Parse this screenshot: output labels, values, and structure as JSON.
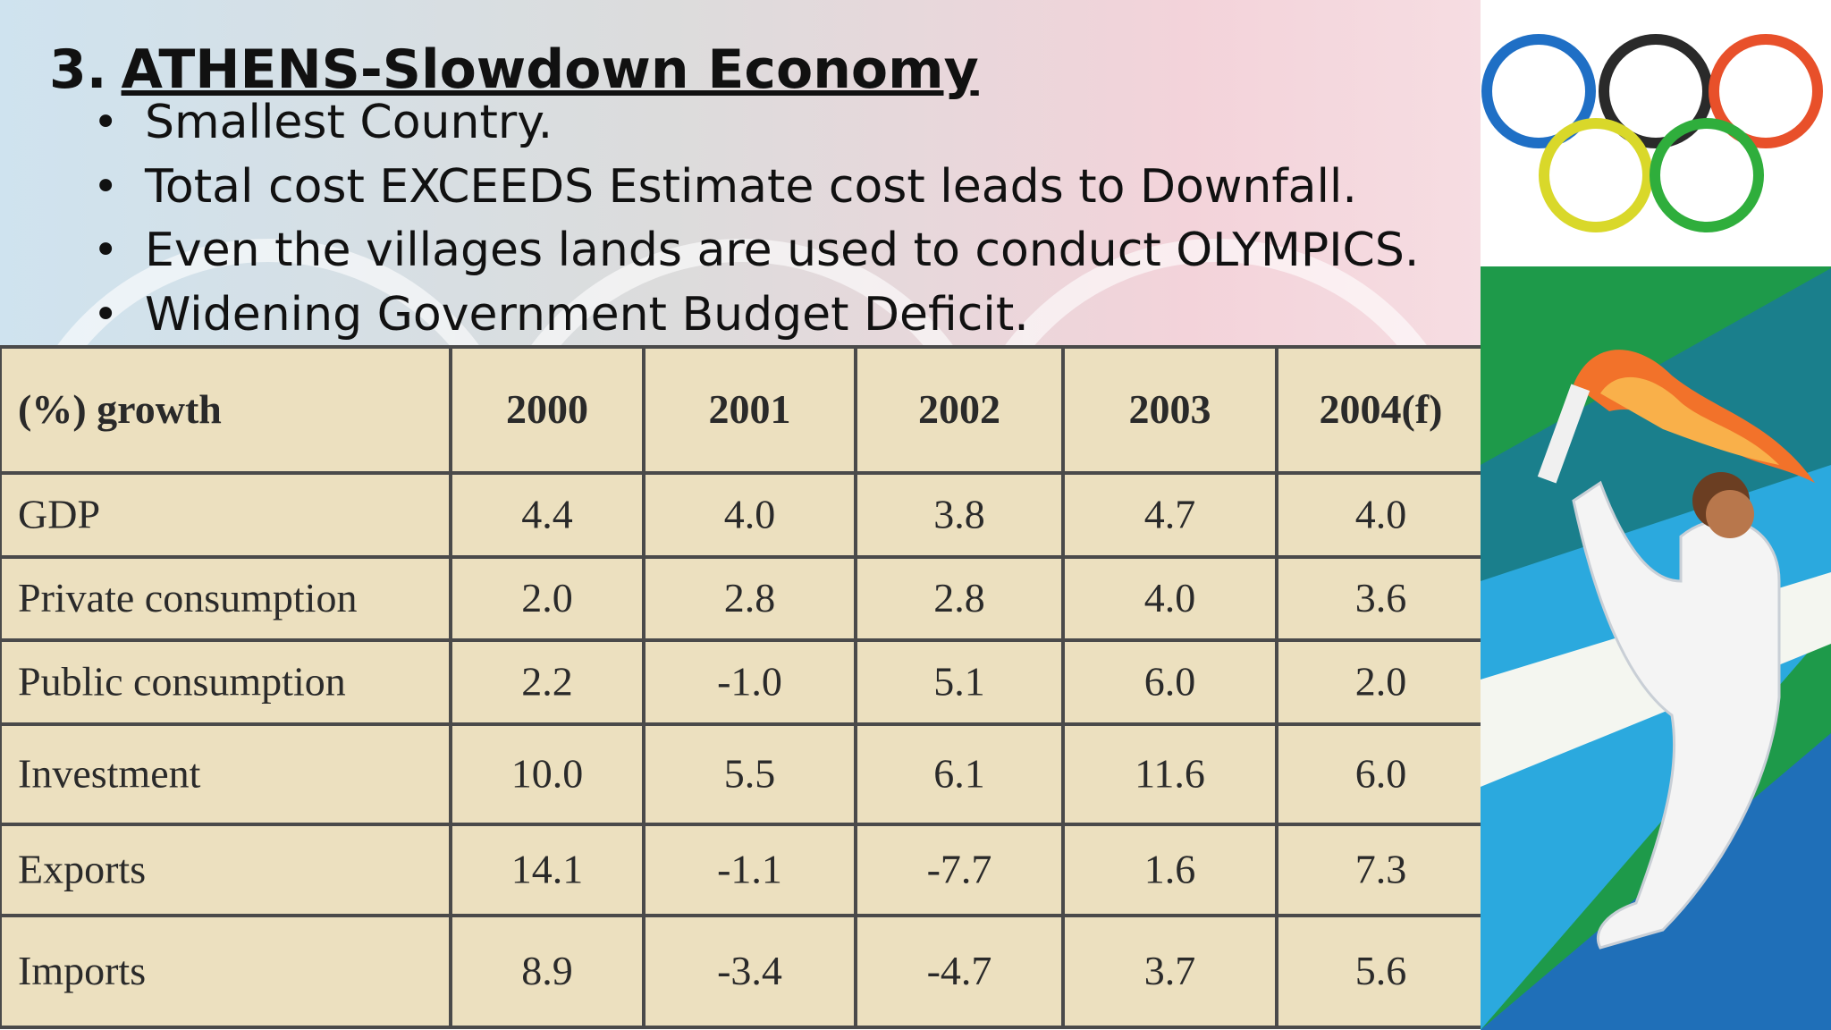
{
  "slide": {
    "number": "3.",
    "title": "ATHENS-Slowdown Economy",
    "bullets": [
      "Smallest Country.",
      "Total cost EXCEEDS Estimate cost  leads to Downfall.",
      "Even the villages lands are used to conduct OLYMPICS.",
      "Widening Government Budget Deficit."
    ]
  },
  "table": {
    "header": [
      "(%) growth",
      "2000",
      "2001",
      "2002",
      "2003",
      "2004(f)"
    ],
    "rows": [
      [
        "GDP",
        "4.4",
        "4.0",
        "3.8",
        "4.7",
        "4.0"
      ],
      [
        "Private consumption",
        "2.0",
        "2.8",
        "2.8",
        "4.0",
        "3.6"
      ],
      [
        "Public consumption",
        "2.2",
        "-1.0",
        "5.1",
        "6.0",
        "2.0"
      ],
      [
        "Investment",
        "10.0",
        "5.5",
        "6.1",
        "11.6",
        "6.0"
      ],
      [
        "Exports",
        "14.1",
        "-1.1",
        "-7.7",
        "1.6",
        "7.3"
      ],
      [
        "Imports",
        "8.9",
        "-3.4",
        "-4.7",
        "3.7",
        "5.6"
      ]
    ]
  }
}
